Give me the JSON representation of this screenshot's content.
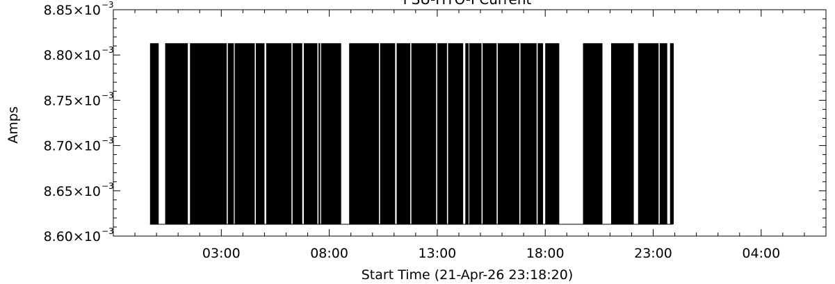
{
  "chart_data": {
    "type": "line",
    "title": "PSU-HTO-I Current",
    "ylabel": "Amps",
    "xlabel": "Start Time (21-Apr-26 23:18:20)",
    "y_ticks": [
      {
        "value": 0.0086,
        "mantissa": "8.60×10",
        "exponent": "−3"
      },
      {
        "value": 0.00865,
        "mantissa": "8.65×10",
        "exponent": "−3"
      },
      {
        "value": 0.0087,
        "mantissa": "8.70×10",
        "exponent": "−3"
      },
      {
        "value": 0.00875,
        "mantissa": "8.75×10",
        "exponent": "−3"
      },
      {
        "value": 0.0088,
        "mantissa": "8.80×10",
        "exponent": "−3"
      },
      {
        "value": 0.00885,
        "mantissa": "8.85×10",
        "exponent": "−3"
      }
    ],
    "ylim": [
      0.0086,
      0.00885
    ],
    "x_unit": "hours since start",
    "xlim": [
      -5.0,
      28.0
    ],
    "x_ticks": [
      {
        "value": 0,
        "label": "03:00"
      },
      {
        "value": 5,
        "label": "08:00"
      },
      {
        "value": 10,
        "label": "13:00"
      },
      {
        "value": 15,
        "label": "18:00"
      },
      {
        "value": 20,
        "label": "23:00"
      },
      {
        "value": 25,
        "label": "04:00"
      }
    ],
    "series": [
      {
        "low_value": 0.008613,
        "high_value": 0.008813,
        "baseline_range": [
          -3.3,
          20.9
        ],
        "toggle_segments": [
          [
            -3.3,
            -2.9
          ],
          [
            -2.6,
            -1.55
          ],
          [
            -1.45,
            0.25
          ],
          [
            0.3,
            0.58
          ],
          [
            0.62,
            1.55
          ],
          [
            1.6,
            2.0
          ],
          [
            2.08,
            3.25
          ],
          [
            3.3,
            3.75
          ],
          [
            3.82,
            4.45
          ],
          [
            4.5,
            4.58
          ],
          [
            4.62,
            5.55
          ],
          [
            5.92,
            7.3
          ],
          [
            7.35,
            8.05
          ],
          [
            8.12,
            8.75
          ],
          [
            8.8,
            9.95
          ],
          [
            10.0,
            10.45
          ],
          [
            10.5,
            11.2
          ],
          [
            11.3,
            11.45
          ],
          [
            11.48,
            12.05
          ],
          [
            12.1,
            12.75
          ],
          [
            12.8,
            13.8
          ],
          [
            13.85,
            14.6
          ],
          [
            14.65,
            14.9
          ],
          [
            15.0,
            15.65
          ],
          [
            16.75,
            17.65
          ],
          [
            18.05,
            19.1
          ],
          [
            19.3,
            20.25
          ],
          [
            20.3,
            20.65
          ],
          [
            20.78,
            20.95
          ]
        ]
      }
    ]
  }
}
